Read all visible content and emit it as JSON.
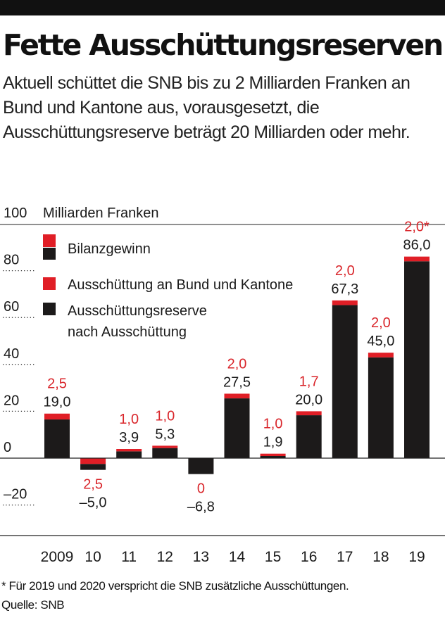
{
  "title": "Fette Ausschüttungsreserven",
  "subtitle": "Aktuell schüttet die SNB bis zu 2 Milliarden Franken an Bund und Kantone aus, vorausgesetzt, die Ausschüttungsreserve beträgt 20 Milliarden oder mehr.",
  "footnote": "* Für 2019 und 2020 verspricht die SNB zusätzliche Ausschüttungen.",
  "source": "Quelle: SNB",
  "colors": {
    "reserve": "#1c1a1a",
    "payout": "#e01e26",
    "label_red": "#d9262b",
    "text": "#1a1a1a"
  },
  "chart_data": {
    "type": "bar",
    "unit_label": "Milliarden Franken",
    "categories": [
      "2009",
      "10",
      "11",
      "12",
      "13",
      "14",
      "15",
      "16",
      "17",
      "18",
      "19"
    ],
    "ylim": [
      -20,
      100
    ],
    "yticks": [
      "100",
      "80",
      "60",
      "40",
      "20",
      "0",
      "–20"
    ],
    "ytick_values": [
      100,
      80,
      60,
      40,
      20,
      0,
      -20
    ],
    "legend": [
      {
        "swatch": [
          "payout",
          "reserve"
        ],
        "label": "Bilanzgewinn"
      },
      {
        "swatch": [
          "payout"
        ],
        "label": "Ausschüttung an Bund und Kantone"
      },
      {
        "swatch": [
          "reserve"
        ],
        "label": "Ausschüttungsreserve nach Ausschüttung"
      }
    ],
    "series": [
      {
        "name": "Ausschüttung an Bund und Kantone",
        "values": [
          2.5,
          2.5,
          1.0,
          1.0,
          0,
          2.0,
          1.0,
          1.7,
          2.0,
          2.0,
          2.0
        ]
      },
      {
        "name": "Bilanzgewinn",
        "values": [
          19.0,
          -5.0,
          3.9,
          5.3,
          -6.8,
          27.5,
          1.9,
          20.0,
          67.3,
          45.0,
          86.0
        ]
      }
    ],
    "payout_labels": [
      "2,5",
      "2,5",
      "1,0",
      "1,0",
      "0",
      "2,0",
      "1,0",
      "1,7",
      "2,0",
      "2,0",
      "2,0*"
    ],
    "value_labels": [
      "19,0",
      "–5,0",
      "3,9",
      "5,3",
      "–6,8",
      "27,5",
      "1,9",
      "20,0",
      "67,3",
      "45,0",
      "86,0"
    ]
  }
}
